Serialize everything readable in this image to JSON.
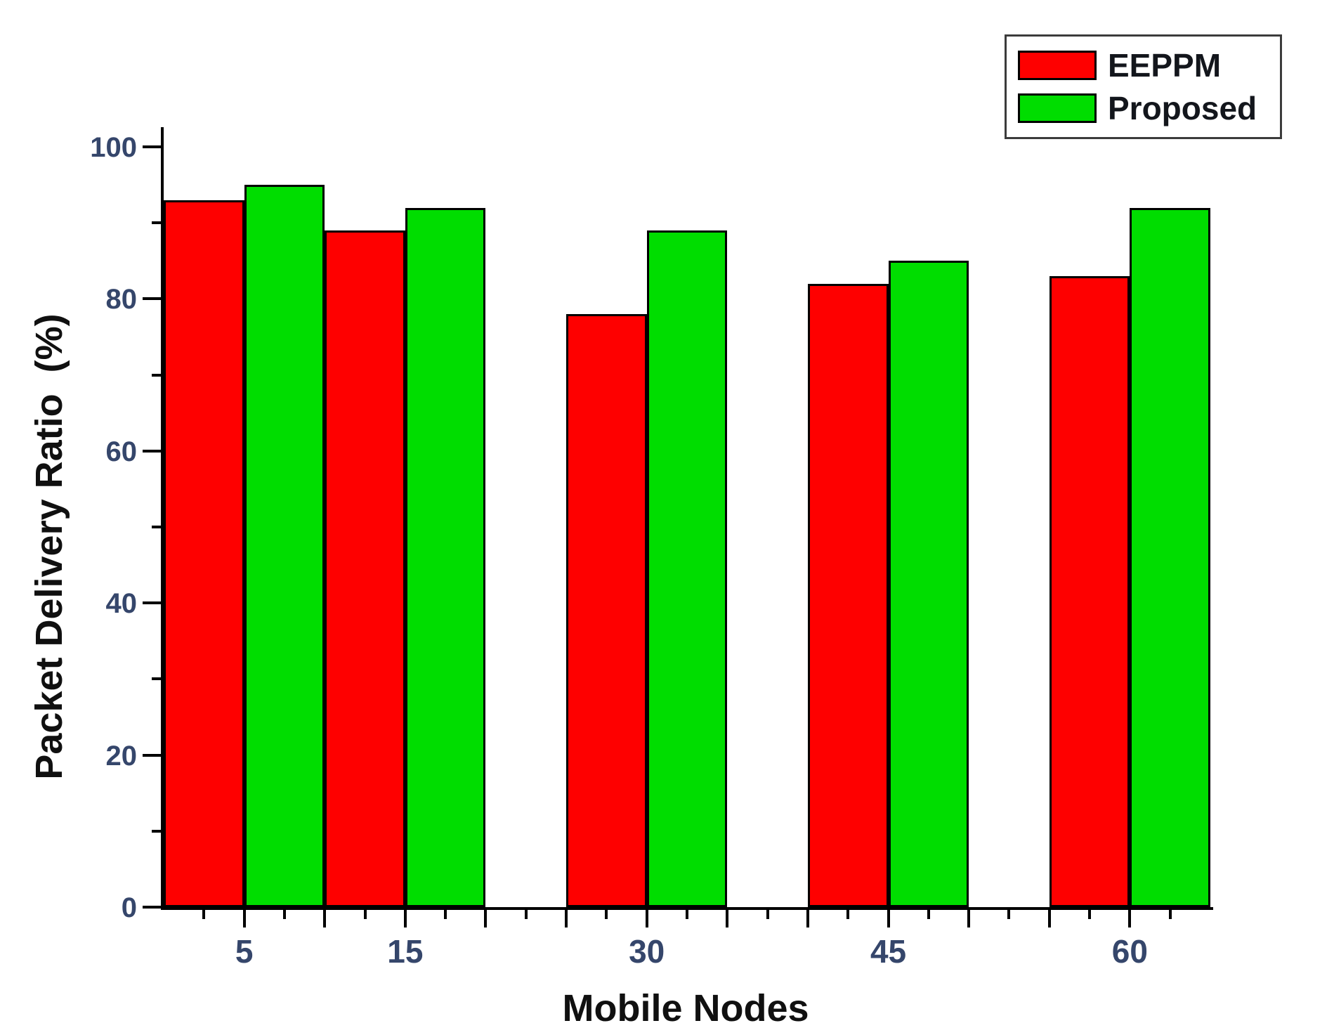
{
  "chart_data": {
    "type": "bar",
    "categories": [
      5,
      15,
      30,
      45,
      60
    ],
    "series": [
      {
        "name": "EEPPM",
        "color": "#fe0000",
        "values": [
          93,
          89,
          78,
          82,
          83
        ]
      },
      {
        "name": "Proposed",
        "color": "#00dd00",
        "values": [
          95,
          92,
          89,
          85,
          92
        ]
      }
    ],
    "title": "",
    "xlabel": "Mobile Nodes",
    "ylabel": "Packet Delivery Ratio  (%)",
    "xlim": [
      0,
      65
    ],
    "ylim": [
      0,
      100
    ],
    "y_major_step": 20,
    "y_minor_step": 10,
    "x_major_step": 5,
    "x_minor_step": 2.5,
    "y_tick_label_values": [
      0,
      20,
      40,
      60,
      80,
      100
    ],
    "x_tick_label_values": [
      5,
      15,
      30,
      45,
      60
    ],
    "bar_width_units": 5,
    "grid": false,
    "legend_position": "top-right",
    "bar_border_color": "#000000",
    "axis_color": "#000000",
    "tick_label_color": "#35466b"
  },
  "legend": {
    "items": [
      {
        "label": "EEPPM",
        "color": "#fe0000"
      },
      {
        "label": "Proposed",
        "color": "#00dd00"
      }
    ]
  }
}
